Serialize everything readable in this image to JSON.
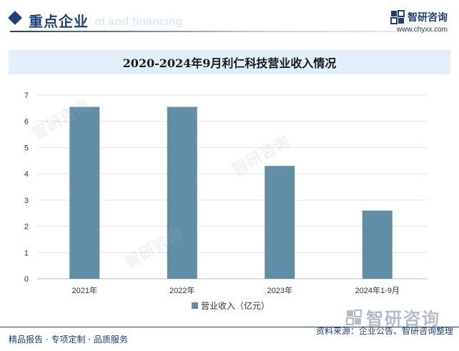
{
  "header": {
    "section_title": "重点企业",
    "ghost_text": "nt and financing",
    "brand_name": "智研咨询",
    "brand_url": "www.chyxx.com"
  },
  "chart_title": "2020-2024年9月利仁科技营业收入情况",
  "chart_data": {
    "type": "bar",
    "categories": [
      "2021年",
      "2022年",
      "2023年",
      "2024年1-9月"
    ],
    "series": [
      {
        "name": "营业收入（亿元）",
        "values": [
          6.55,
          6.55,
          4.3,
          2.6
        ],
        "color": "#5f8ea6"
      }
    ],
    "ylim": [
      0,
      7
    ],
    "yticks": [
      "0",
      "1",
      "2",
      "3",
      "4",
      "5",
      "6",
      "7"
    ],
    "grid": true,
    "legend": "bottom"
  },
  "footer": {
    "left": "精品报告 · 专项定制 · 品质服务",
    "right": "资料来源：企业公告、智研咨询整理",
    "brand": "智研咨询"
  },
  "watermark_text": "智研咨询"
}
